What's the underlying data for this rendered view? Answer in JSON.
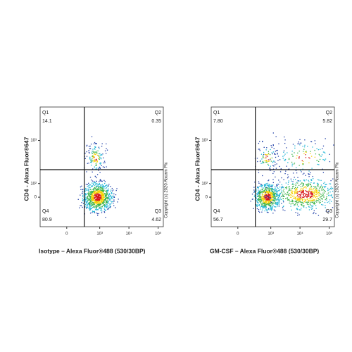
{
  "chart_data": [
    {
      "type": "flow-density",
      "x_label": "Isotype – Alexa Fluor®488 (530/30BP)",
      "y_label": "CD4 - Alexa Fluor®647",
      "copyright": "Copyright (c) 2020 Abcam Plc",
      "quadrants": [
        "Q1",
        "Q2",
        "Q3",
        "Q4"
      ],
      "values": [
        14.1,
        0.35,
        4.62,
        80.9
      ],
      "scale": "biexponential",
      "xlim": [
        -600,
        150000
      ],
      "ylim": [
        -270,
        4650
      ],
      "xticks": [
        0,
        {
          "value": 1000,
          "label": "10³"
        },
        {
          "value": 10000,
          "label": "10⁴"
        },
        {
          "value": 100000,
          "label": "10⁵"
        }
      ],
      "yticks": [
        0,
        {
          "value": 100,
          "label": "10²"
        },
        {
          "value": 1000,
          "label": "10³"
        }
      ],
      "gate": [
        280,
        243
      ]
    },
    {
      "type": "flow-density",
      "x_label": "GM-CSF – Alexa Fluor®488 (530/30BP)",
      "y_label": "CD4 - Alexa Fluor®647",
      "copyright": "Copyright (c) 2020 Abcam Plc",
      "quadrants": [
        "Q1",
        "Q2",
        "Q3",
        "Q4"
      ],
      "values": [
        7.8,
        5.82,
        29.7,
        56.7
      ],
      "value_labels": [
        "7.80",
        "5.82",
        "29.7",
        "56.7"
      ],
      "scale": "biexponential",
      "xlim": [
        -600,
        150000
      ],
      "ylim": [
        -270,
        4650
      ],
      "xticks": [
        0,
        {
          "value": 1000,
          "label": "10³"
        },
        {
          "value": 10000,
          "label": "10⁴"
        },
        {
          "value": 100000,
          "label": "10⁵"
        }
      ],
      "yticks": [
        0,
        {
          "value": 100,
          "label": "10²"
        },
        {
          "value": 1000,
          "label": "10³"
        }
      ],
      "gate": [
        280,
        243
      ]
    }
  ]
}
